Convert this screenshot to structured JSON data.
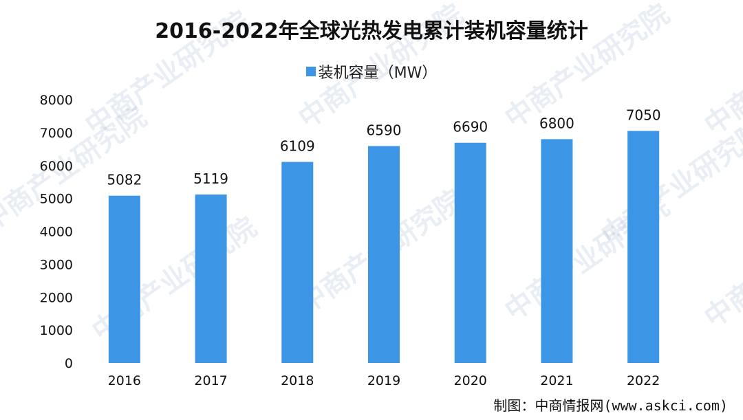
{
  "watermark_text": "中商产业研究院",
  "source": "制图：中商情报网(www.askci.com)",
  "chart_data": {
    "type": "bar",
    "title": "2016-2022年全球光热发电累计装机容量统计",
    "categories": [
      "2016",
      "2017",
      "2018",
      "2019",
      "2020",
      "2021",
      "2022"
    ],
    "series": [
      {
        "name": "装机容量（MW）",
        "values": [
          5082,
          5119,
          6109,
          6590,
          6690,
          6800,
          7050
        ]
      }
    ],
    "xlabel": "",
    "ylabel": "",
    "ylim": [
      0,
      8000
    ],
    "yticks": [
      0,
      1000,
      2000,
      3000,
      4000,
      5000,
      6000,
      7000,
      8000
    ],
    "legend_position": "top-center",
    "grid": false,
    "bar_color": "#3d95e6"
  }
}
